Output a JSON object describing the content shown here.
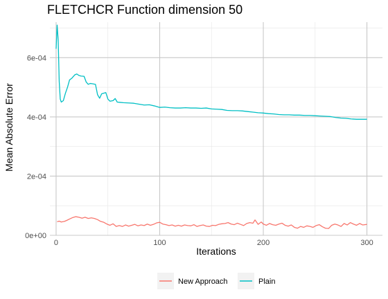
{
  "chart_data": {
    "type": "line",
    "title": "FLETCHCR Function dimension 50",
    "xlabel": "Iterations",
    "ylabel": "Mean Absolute Error",
    "xlim": [
      -6,
      315
    ],
    "ylim": [
      0,
      0.00072
    ],
    "x_ticks": [
      0,
      100,
      200,
      300
    ],
    "x_tick_labels": [
      "0",
      "100",
      "200",
      "300"
    ],
    "y_ticks": [
      0,
      0.0002,
      0.0004,
      0.0006
    ],
    "y_tick_labels": [
      "0e+00",
      "2e-04",
      "4e-04",
      "6e-04"
    ],
    "grid": true,
    "legend_position": "bottom",
    "series": [
      {
        "name": "New Approach",
        "color": "#f8766d",
        "points": [
          [
            1,
            4.6e-05
          ],
          [
            3,
            4.8e-05
          ],
          [
            5,
            4.5e-05
          ],
          [
            8,
            4.7e-05
          ],
          [
            10,
            5e-05
          ],
          [
            13,
            5.5e-05
          ],
          [
            16,
            6e-05
          ],
          [
            19,
            6.3e-05
          ],
          [
            22,
            6.1e-05
          ],
          [
            25,
            5.8e-05
          ],
          [
            28,
            6.1e-05
          ],
          [
            31,
            5.7e-05
          ],
          [
            34,
            5.9e-05
          ],
          [
            37,
            5.7e-05
          ],
          [
            40,
            5.3e-05
          ],
          [
            43,
            4.7e-05
          ],
          [
            46,
            4.4e-05
          ],
          [
            49,
            3.8e-05
          ],
          [
            52,
            3.4e-05
          ],
          [
            55,
            3.9e-05
          ],
          [
            58,
            3e-05
          ],
          [
            61,
            3.3e-05
          ],
          [
            64,
            3e-05
          ],
          [
            67,
            3.5e-05
          ],
          [
            70,
            3.1e-05
          ],
          [
            73,
            3.4e-05
          ],
          [
            76,
            3.7e-05
          ],
          [
            79,
            3.2e-05
          ],
          [
            82,
            3.5e-05
          ],
          [
            85,
            3.3e-05
          ],
          [
            88,
            3.8e-05
          ],
          [
            91,
            3.4e-05
          ],
          [
            94,
            3.7e-05
          ],
          [
            97,
            4.2e-05
          ],
          [
            100,
            4.4e-05
          ],
          [
            103,
            3.8e-05
          ],
          [
            106,
            3.6e-05
          ],
          [
            109,
            3.3e-05
          ],
          [
            112,
            3.5e-05
          ],
          [
            115,
            3.1e-05
          ],
          [
            118,
            3.4e-05
          ],
          [
            121,
            3.1e-05
          ],
          [
            124,
            3.5e-05
          ],
          [
            127,
            3.3e-05
          ],
          [
            130,
            3.2e-05
          ],
          [
            133,
            3.6e-05
          ],
          [
            136,
            3e-05
          ],
          [
            139,
            3.3e-05
          ],
          [
            142,
            3.5e-05
          ],
          [
            145,
            3.1e-05
          ],
          [
            148,
            3e-05
          ],
          [
            151,
            3.4e-05
          ],
          [
            154,
            3.3e-05
          ],
          [
            157,
            3.7e-05
          ],
          [
            160,
            3.9e-05
          ],
          [
            163,
            4e-05
          ],
          [
            166,
            4.3e-05
          ],
          [
            169,
            3.8e-05
          ],
          [
            172,
            3.6e-05
          ],
          [
            175,
            4.1e-05
          ],
          [
            178,
            3.7e-05
          ],
          [
            181,
            3.3e-05
          ],
          [
            184,
            4e-05
          ],
          [
            187,
            4.3e-05
          ],
          [
            190,
            4.1e-05
          ],
          [
            192,
            5.2e-05
          ],
          [
            195,
            3.7e-05
          ],
          [
            198,
            4.5e-05
          ],
          [
            200,
            3.8e-05
          ],
          [
            203,
            3.4e-05
          ],
          [
            206,
            4e-05
          ],
          [
            209,
            3.6e-05
          ],
          [
            212,
            3.4e-05
          ],
          [
            215,
            3.8e-05
          ],
          [
            218,
            4.1e-05
          ],
          [
            221,
            3.4e-05
          ],
          [
            224,
            3.1e-05
          ],
          [
            227,
            3.5e-05
          ],
          [
            230,
            2.7e-05
          ],
          [
            233,
            2.4e-05
          ],
          [
            236,
            3e-05
          ],
          [
            239,
            2.7e-05
          ],
          [
            242,
            3.2e-05
          ],
          [
            245,
            3e-05
          ],
          [
            248,
            2.7e-05
          ],
          [
            251,
            3.3e-05
          ],
          [
            254,
            3.6e-05
          ],
          [
            257,
            2.9e-05
          ],
          [
            260,
            2.4e-05
          ],
          [
            263,
            2.3e-05
          ],
          [
            266,
            3.4e-05
          ],
          [
            269,
            3.8e-05
          ],
          [
            272,
            3.5e-05
          ],
          [
            275,
            3e-05
          ],
          [
            278,
            4e-05
          ],
          [
            281,
            3.5e-05
          ],
          [
            284,
            4.3e-05
          ],
          [
            287,
            3.8e-05
          ],
          [
            290,
            3.4e-05
          ],
          [
            293,
            4e-05
          ],
          [
            296,
            3.5e-05
          ],
          [
            300,
            3.7e-05
          ]
        ]
      },
      {
        "name": "Plain",
        "color": "#00bfc4",
        "points": [
          [
            0,
            0.00063
          ],
          [
            1,
            0.00071
          ],
          [
            2,
            0.00066
          ],
          [
            3,
            0.00052
          ],
          [
            4,
            0.00046
          ],
          [
            5,
            0.00045
          ],
          [
            7,
            0.000455
          ],
          [
            9,
            0.00048
          ],
          [
            11,
            0.0005
          ],
          [
            13,
            0.000525
          ],
          [
            15,
            0.00053
          ],
          [
            18,
            0.000542
          ],
          [
            20,
            0.000545
          ],
          [
            22,
            0.00054
          ],
          [
            24,
            0.000538
          ],
          [
            27,
            0.000537
          ],
          [
            29,
            0.000518
          ],
          [
            31,
            0.00051
          ],
          [
            33,
            0.000513
          ],
          [
            35,
            0.000512
          ],
          [
            38,
            0.00051
          ],
          [
            40,
            0.000475
          ],
          [
            42,
            0.000463
          ],
          [
            44,
            0.000478
          ],
          [
            46,
            0.00048
          ],
          [
            48,
            0.000482
          ],
          [
            50,
            0.00046
          ],
          [
            52,
            0.000453
          ],
          [
            55,
            0.000455
          ],
          [
            57,
            0.000462
          ],
          [
            59,
            0.00045
          ],
          [
            62,
            0.000449
          ],
          [
            65,
            0.000448
          ],
          [
            70,
            0.000447
          ],
          [
            75,
            0.000446
          ],
          [
            80,
            0.000443
          ],
          [
            85,
            0.00044
          ],
          [
            90,
            0.000441
          ],
          [
            95,
            0.000437
          ],
          [
            100,
            0.000432
          ],
          [
            105,
            0.000433
          ],
          [
            110,
            0.000431
          ],
          [
            115,
            0.00043
          ],
          [
            120,
            0.00043
          ],
          [
            125,
            0.000431
          ],
          [
            130,
            0.00043
          ],
          [
            135,
            0.00043
          ],
          [
            140,
            0.000429
          ],
          [
            145,
            0.00043
          ],
          [
            150,
            0.000427
          ],
          [
            155,
            0.000426
          ],
          [
            160,
            0.000425
          ],
          [
            165,
            0.000422
          ],
          [
            170,
            0.000421
          ],
          [
            175,
            0.000421
          ],
          [
            180,
            0.00042
          ],
          [
            185,
            0.000418
          ],
          [
            190,
            0.000416
          ],
          [
            195,
            0.000414
          ],
          [
            200,
            0.000413
          ],
          [
            205,
            0.000411
          ],
          [
            210,
            0.00041
          ],
          [
            215,
            0.000408
          ],
          [
            220,
            0.000407
          ],
          [
            225,
            0.000407
          ],
          [
            230,
            0.000406
          ],
          [
            235,
            0.000406
          ],
          [
            240,
            0.000405
          ],
          [
            245,
            0.000405
          ],
          [
            250,
            0.000404
          ],
          [
            255,
            0.000403
          ],
          [
            260,
            0.000402
          ],
          [
            265,
            0.000401
          ],
          [
            270,
            0.000398
          ],
          [
            275,
            0.000396
          ],
          [
            280,
            0.000395
          ],
          [
            285,
            0.000393
          ],
          [
            290,
            0.000392
          ],
          [
            295,
            0.000392
          ],
          [
            300,
            0.000392
          ]
        ]
      }
    ]
  }
}
